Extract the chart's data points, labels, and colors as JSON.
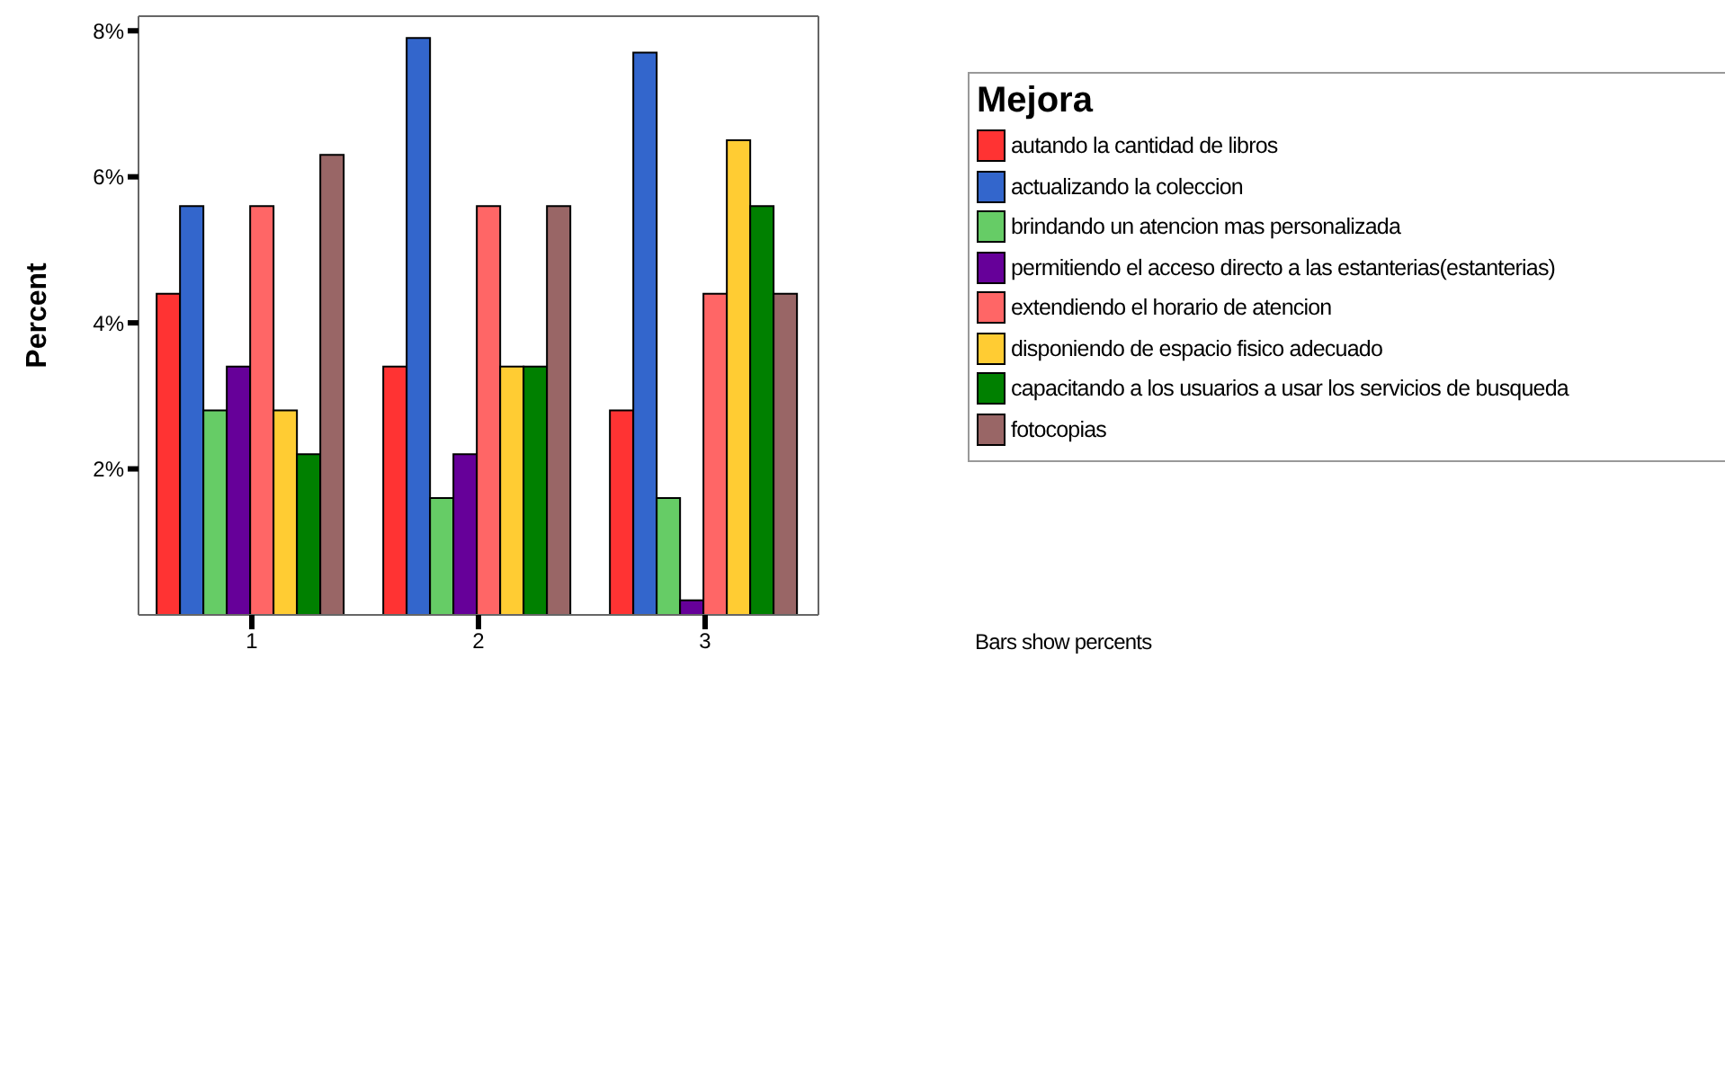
{
  "chart_data": {
    "type": "bar",
    "ylabel": "Percent",
    "legend_title": "Mejora",
    "categories": [
      "1",
      "2",
      "3"
    ],
    "series": [
      {
        "name": "autando la cantidad de libros",
        "color": "#ff3333",
        "values": [
          4.4,
          3.4,
          2.8
        ]
      },
      {
        "name": "actualizando la coleccion",
        "color": "#3366cc",
        "values": [
          5.6,
          7.9,
          7.7
        ]
      },
      {
        "name": "brindando un atencion mas personalizada",
        "color": "#66cc66",
        "values": [
          2.8,
          1.6,
          1.6
        ]
      },
      {
        "name": "permitiendo el acceso directo a las estanterias(estanterias)",
        "color": "#660099",
        "values": [
          3.4,
          2.2,
          0.2
        ]
      },
      {
        "name": "extendiendo el horario de atencion",
        "color": "#ff6666",
        "values": [
          5.6,
          5.6,
          4.4
        ]
      },
      {
        "name": "disponiendo de espacio fisico adecuado",
        "color": "#ffcc33",
        "values": [
          2.8,
          3.4,
          6.5
        ]
      },
      {
        "name": "capacitando a los usuarios a usar los servicios de busqueda",
        "color": "#008000",
        "values": [
          2.2,
          3.4,
          5.6
        ]
      },
      {
        "name": "fotocopias",
        "color": "#996666",
        "values": [
          6.3,
          5.6,
          4.4
        ]
      }
    ],
    "ylim": [
      0,
      8.2
    ],
    "yticks": [
      {
        "value": 2,
        "label": "2%"
      },
      {
        "value": 4,
        "label": "4%"
      },
      {
        "value": 6,
        "label": "6%"
      },
      {
        "value": 8,
        "label": "8%"
      }
    ],
    "grid": false,
    "legend": "top right",
    "annotations": [
      "Bars show percents"
    ]
  }
}
